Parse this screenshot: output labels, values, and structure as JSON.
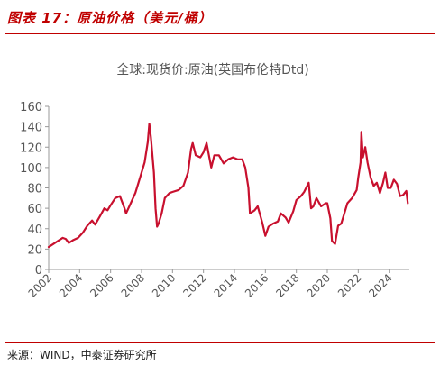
{
  "header": {
    "title": "图表 17：原油价格（美元/桶）"
  },
  "footer": {
    "source": "来源：WIND，中泰证券研究所"
  },
  "colors": {
    "accent": "#c00000",
    "line": "#c8102e",
    "text": "#555555",
    "axis": "#999999"
  },
  "chart_data": {
    "type": "line",
    "title": "全球:现货价:原油(英国布伦特Dtd)",
    "xlabel": "",
    "ylabel": "",
    "ylim": [
      0,
      160
    ],
    "yticks": [
      0,
      20,
      40,
      60,
      80,
      100,
      120,
      140,
      160
    ],
    "xlim": [
      2002,
      2025.3
    ],
    "xticks": [
      "2002",
      "2004",
      "2006",
      "2008",
      "2010",
      "2012",
      "2014",
      "2016",
      "2018",
      "2020",
      "2022",
      "2024"
    ],
    "grid": false,
    "legend": "none",
    "series": [
      {
        "x": [
          2002.0,
          2002.3,
          2002.6,
          2002.9,
          2003.1,
          2003.3,
          2003.6,
          2003.9,
          2004.2,
          2004.5,
          2004.8,
          2005.0,
          2005.3,
          2005.6,
          2005.8,
          2006.0,
          2006.3,
          2006.6,
          2006.9,
          2007.0,
          2007.3,
          2007.6,
          2007.9,
          2008.0,
          2008.2,
          2008.4,
          2008.5,
          2008.6,
          2008.8,
          2008.9,
          2009.0,
          2009.1,
          2009.3,
          2009.5,
          2009.8,
          2010.0,
          2010.4,
          2010.7,
          2011.0,
          2011.2,
          2011.3,
          2011.5,
          2011.8,
          2012.0,
          2012.2,
          2012.5,
          2012.7,
          2013.0,
          2013.3,
          2013.6,
          2013.9,
          2014.2,
          2014.5,
          2014.7,
          2014.9,
          2015.0,
          2015.3,
          2015.5,
          2015.8,
          2016.0,
          2016.2,
          2016.5,
          2016.8,
          2017.0,
          2017.3,
          2017.5,
          2017.8,
          2018.0,
          2018.3,
          2018.5,
          2018.8,
          2018.95,
          2019.1,
          2019.3,
          2019.6,
          2019.9,
          2020.0,
          2020.2,
          2020.3,
          2020.5,
          2020.7,
          2020.9,
          2021.1,
          2021.3,
          2021.6,
          2021.9,
          2022.0,
          2022.15,
          2022.2,
          2022.3,
          2022.45,
          2022.6,
          2022.8,
          2023.0,
          2023.2,
          2023.4,
          2023.6,
          2023.75,
          2023.9,
          2024.1,
          2024.3,
          2024.5,
          2024.7,
          2024.9,
          2025.1,
          2025.2
        ],
        "y": [
          22,
          25,
          28,
          31,
          30,
          26,
          29,
          31,
          36,
          43,
          48,
          44,
          52,
          60,
          58,
          63,
          70,
          72,
          60,
          55,
          65,
          75,
          90,
          95,
          105,
          125,
          143,
          130,
          95,
          60,
          42,
          45,
          55,
          70,
          75,
          76,
          78,
          82,
          95,
          118,
          124,
          112,
          110,
          115,
          124,
          100,
          112,
          112,
          104,
          108,
          110,
          108,
          108,
          100,
          80,
          55,
          58,
          62,
          46,
          33,
          42,
          45,
          47,
          55,
          51,
          46,
          57,
          68,
          72,
          76,
          85,
          60,
          62,
          70,
          62,
          65,
          65,
          50,
          28,
          25,
          43,
          45,
          55,
          65,
          70,
          78,
          90,
          105,
          135,
          110,
          120,
          105,
          90,
          82,
          85,
          75,
          85,
          95,
          80,
          80,
          88,
          84,
          72,
          73,
          77,
          65
        ]
      }
    ]
  }
}
